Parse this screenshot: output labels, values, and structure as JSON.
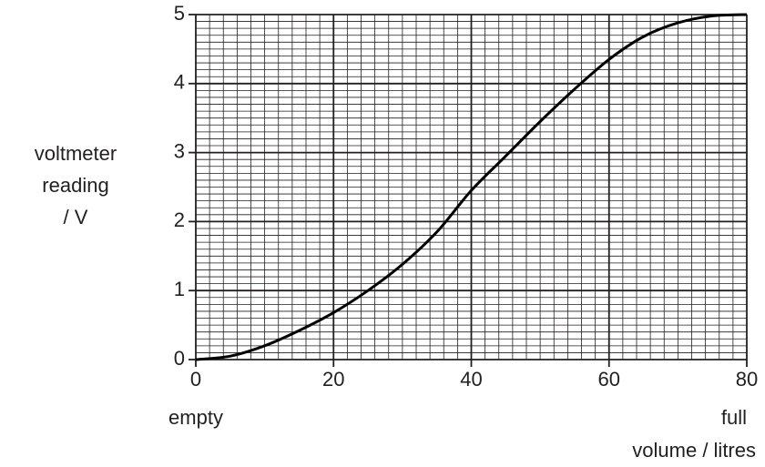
{
  "chart_data": {
    "type": "line",
    "ylabel": [
      "voltmeter",
      "reading",
      "/ V"
    ],
    "xlabel": "volume / litres",
    "annotations": [
      "empty",
      "full"
    ],
    "x": [
      0,
      5,
      10,
      15,
      20,
      25,
      30,
      35,
      40,
      45,
      50,
      55,
      60,
      65,
      70,
      75,
      80
    ],
    "series": [
      {
        "color": "#000000",
        "values": [
          0,
          0.05,
          0.2,
          0.42,
          0.68,
          1.0,
          1.38,
          1.85,
          2.45,
          2.95,
          3.45,
          3.92,
          4.35,
          4.68,
          4.88,
          4.98,
          5.0
        ]
      }
    ],
    "xlim": [
      0,
      80
    ],
    "xticks": [
      0,
      20,
      40,
      60,
      80
    ],
    "ylim": [
      0,
      5
    ],
    "yticks": [
      0,
      1,
      2,
      3,
      4,
      5
    ],
    "grid": true,
    "minor_grid": {
      "x": 2,
      "y": 0.1
    }
  }
}
